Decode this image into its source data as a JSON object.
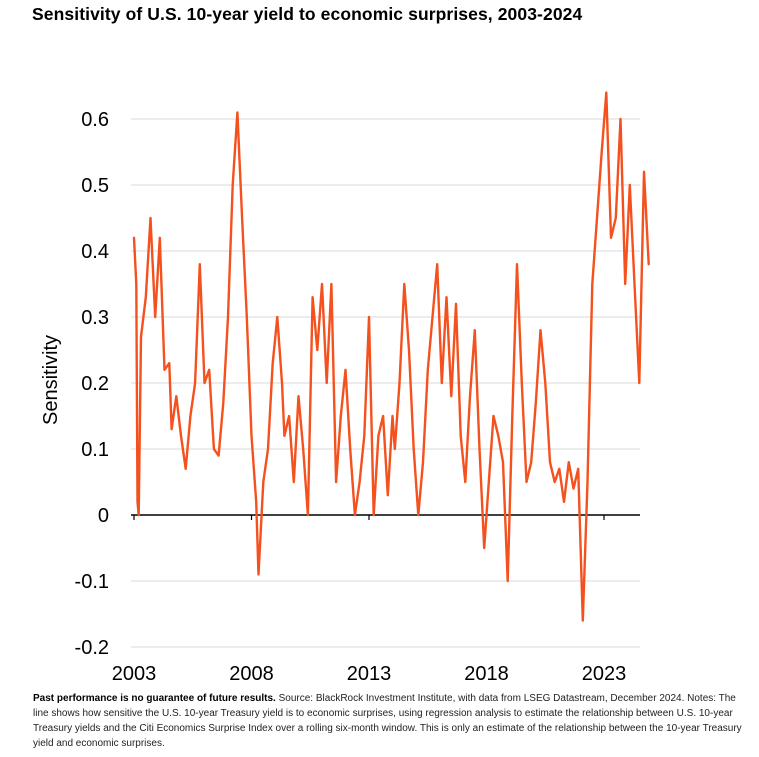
{
  "title": "Sensitivity of U.S. 10-year yield to economic surprises, 2003-2024",
  "footnote": {
    "bold": "Past performance is no guarantee of future results.",
    "text": " Source: BlackRock Investment Institute, with data from LSEG Datastream, December 2024. Notes: The line shows how sensitive the U.S. 10-year Treasury yield is to economic surprises, using regression analysis to estimate the relationship between U.S. 10-year Treasury yields and the Citi Economics Surprise Index over a rolling six-month window. This is only an estimate of the relationship between the 10-year Treasury yield and economic surprises."
  },
  "chart_data": {
    "type": "line",
    "xlabel": "",
    "ylabel": "Sensitivity",
    "xlim": [
      2003,
      2024.9
    ],
    "ylim": [
      -0.2,
      0.65
    ],
    "x_ticks": [
      2003,
      2008,
      2013,
      2018,
      2023
    ],
    "x_tick_labels": [
      "2003",
      "2008",
      "2013",
      "2018",
      "2023"
    ],
    "y_ticks": [
      -0.2,
      -0.1,
      0,
      0.1,
      0.2,
      0.3,
      0.4,
      0.5,
      0.6
    ],
    "y_tick_labels": [
      "-0.2",
      "-0.1",
      "0",
      "0.1",
      "0.2",
      "0.3",
      "0.4",
      "0.5",
      "0.6"
    ],
    "grid": "horizontal",
    "color": "#f4511e",
    "series": [
      {
        "x": [
          2003.0,
          2003.1,
          2003.15,
          2003.2,
          2003.3,
          2003.5,
          2003.7,
          2003.9,
          2004.1,
          2004.3,
          2004.5,
          2004.6,
          2004.8,
          2005.0,
          2005.2,
          2005.4,
          2005.6,
          2005.8,
          2006.0,
          2006.2,
          2006.4,
          2006.6,
          2006.8,
          2007.0,
          2007.2,
          2007.4,
          2007.6,
          2007.8,
          2008.0,
          2008.2,
          2008.3,
          2008.5,
          2008.7,
          2008.9,
          2009.1,
          2009.3,
          2009.4,
          2009.6,
          2009.8,
          2010.0,
          2010.2,
          2010.4,
          2010.6,
          2010.8,
          2011.0,
          2011.2,
          2011.4,
          2011.6,
          2011.8,
          2012.0,
          2012.2,
          2012.4,
          2012.6,
          2012.8,
          2013.0,
          2013.2,
          2013.4,
          2013.6,
          2013.8,
          2014.0,
          2014.1,
          2014.3,
          2014.5,
          2014.7,
          2014.9,
          2015.1,
          2015.3,
          2015.5,
          2015.7,
          2015.9,
          2016.1,
          2016.3,
          2016.5,
          2016.7,
          2016.9,
          2017.1,
          2017.3,
          2017.5,
          2017.7,
          2017.9,
          2018.1,
          2018.3,
          2018.5,
          2018.7,
          2018.9,
          2019.1,
          2019.3,
          2019.5,
          2019.7,
          2019.9,
          2020.1,
          2020.3,
          2020.5,
          2020.7,
          2020.9,
          2021.1,
          2021.3,
          2021.5,
          2021.7,
          2021.9,
          2022.1,
          2022.3,
          2022.5,
          2022.7,
          2022.9,
          2023.1,
          2023.3,
          2023.5,
          2023.7,
          2023.9,
          2024.1,
          2024.3,
          2024.5,
          2024.7,
          2024.9
        ],
        "y": [
          0.42,
          0.35,
          0.02,
          0.0,
          0.27,
          0.33,
          0.45,
          0.3,
          0.42,
          0.22,
          0.23,
          0.13,
          0.18,
          0.12,
          0.07,
          0.15,
          0.2,
          0.38,
          0.2,
          0.22,
          0.1,
          0.09,
          0.17,
          0.3,
          0.5,
          0.61,
          0.45,
          0.3,
          0.12,
          0.02,
          -0.09,
          0.05,
          0.1,
          0.23,
          0.3,
          0.2,
          0.12,
          0.15,
          0.05,
          0.18,
          0.1,
          0.0,
          0.33,
          0.25,
          0.35,
          0.2,
          0.35,
          0.05,
          0.15,
          0.22,
          0.1,
          0.0,
          0.05,
          0.12,
          0.3,
          0.0,
          0.12,
          0.15,
          0.03,
          0.15,
          0.1,
          0.2,
          0.35,
          0.25,
          0.1,
          0.0,
          0.08,
          0.22,
          0.3,
          0.38,
          0.2,
          0.33,
          0.18,
          0.32,
          0.12,
          0.05,
          0.18,
          0.28,
          0.1,
          -0.05,
          0.05,
          0.15,
          0.12,
          0.08,
          -0.1,
          0.15,
          0.38,
          0.2,
          0.05,
          0.08,
          0.17,
          0.28,
          0.2,
          0.08,
          0.05,
          0.07,
          0.02,
          0.08,
          0.04,
          0.07,
          -0.16,
          0.05,
          0.35,
          0.45,
          0.55,
          0.64,
          0.42,
          0.45,
          0.6,
          0.35,
          0.5,
          0.35,
          0.2,
          0.52,
          0.38
        ]
      }
    ]
  }
}
